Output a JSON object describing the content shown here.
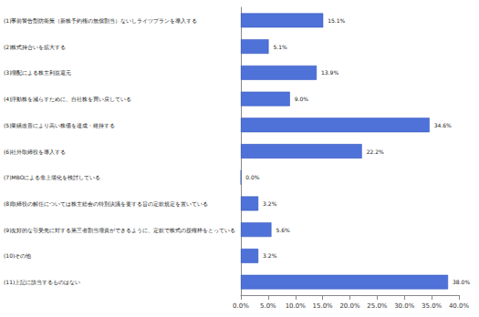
{
  "chart_data": {
    "type": "bar",
    "orientation": "horizontal",
    "categories": [
      "(1)事前警告型防衛策（新株予約権の無償割当）ないしライツプランを導入する",
      "(2)株式持合いを拡大する",
      "(3)増配による株主利益還元",
      "(4)浮動株を減らすために、自社株を買い戻している",
      "(5)業績改善により高い株価を達成・維持する",
      "(6)社外取締役を導入する",
      "(7)MBOによる非上場化を検討している",
      "(8)取締役の解任については株主総会の特別決議を要する旨の定款規定を置いている",
      "(9)友好的な引受先に対する第三者割当増資ができるように、定款で株式の授権枠をとっている",
      "(10)その他",
      "(11)上記に該当するものはない"
    ],
    "values": [
      15.1,
      5.1,
      13.9,
      9.0,
      34.6,
      22.2,
      0.0,
      3.2,
      5.6,
      3.2,
      38.0
    ],
    "value_labels": [
      "15.1%",
      "5.1%",
      "13.9%",
      "9.0%",
      "34.6%",
      "22.2%",
      "0.0%",
      "3.2%",
      "5.6%",
      "3.2%",
      "38.0%"
    ],
    "data_labels": true,
    "color": "#4f72d9",
    "xlim": [
      0,
      40
    ],
    "xticks": [
      {
        "value": 0,
        "label": "0.0%"
      },
      {
        "value": 5,
        "label": "5.0%"
      },
      {
        "value": 10,
        "label": "10.0%"
      },
      {
        "value": 15,
        "label": "15.0%"
      },
      {
        "value": 20,
        "label": "20.0%"
      },
      {
        "value": 25,
        "label": "25.0%"
      },
      {
        "value": 30,
        "label": "30.0%"
      },
      {
        "value": 35,
        "label": "35.0%"
      },
      {
        "value": 40,
        "label": "40.0%"
      }
    ],
    "grid": false
  }
}
